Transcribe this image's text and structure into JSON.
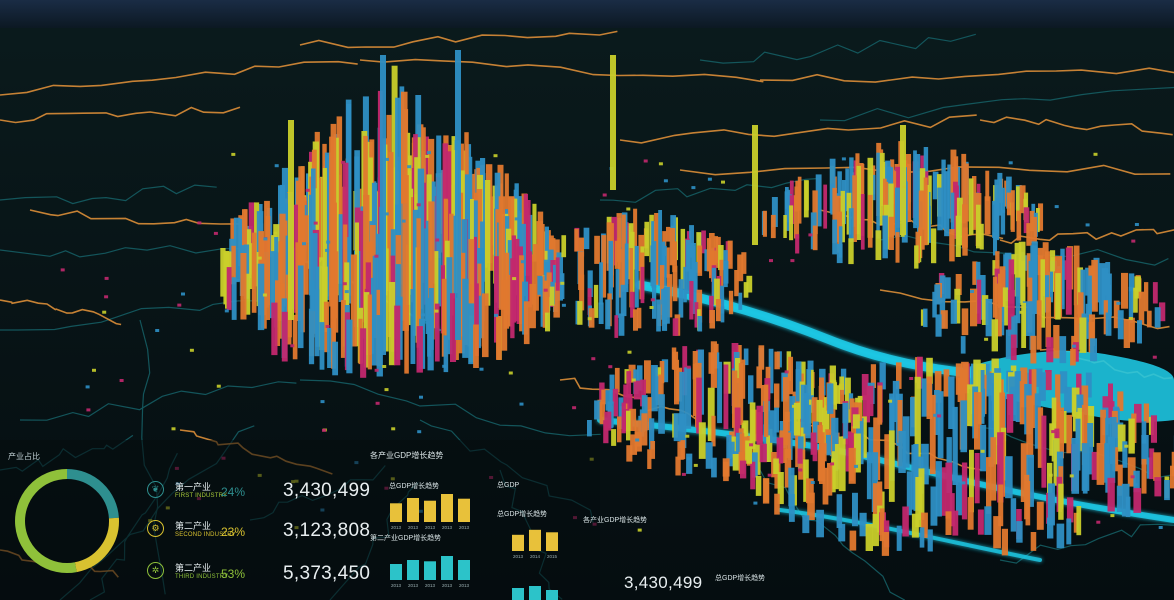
{
  "colors": {
    "background": "#061014",
    "road": "#e8953a",
    "river": "#1fc9e6",
    "bar_blue": "#2e8fc4",
    "bar_orange": "#e0782e",
    "bar_yellow": "#c9cf2a",
    "bar_magenta": "#c2286e",
    "accent_green": "#a7c83a",
    "accent_yellow": "#e8c13a",
    "accent_teal": "#2cc3c9"
  },
  "panel": {
    "title": "产业占比",
    "rows": [
      {
        "icon": "wheat-icon",
        "title": "第一产业",
        "subtitle": "FIRST INDUSTRY",
        "percent": "24%",
        "value": "3,430,499",
        "color": "#2e8f8f"
      },
      {
        "icon": "gear-icon",
        "title": "第二产业",
        "subtitle": "SECOND INDUSTRY",
        "percent": "23%",
        "value": "3,123,808",
        "color": "#d9c230"
      },
      {
        "icon": "cog-icon",
        "title": "第二产业",
        "subtitle": "THIRD INDUSTRY",
        "percent": "53%",
        "value": "5,373,450",
        "color": "#8fc13a"
      }
    ]
  },
  "mini_charts": {
    "main_title": "各产业GDP增长趋势",
    "chart1_title": "总GDP增长趋势",
    "chart2_title": "第二产业GDP增长趋势",
    "chart3_title": "总GDP增长趋势",
    "chart4_title": "总GDP",
    "overlay_title": "各产业GDP增长趋势",
    "overlay_value": "3,430,499",
    "overlay_small": "总GDP增长趋势"
  },
  "chart_data": [
    {
      "type": "pie",
      "title": "产业占比",
      "categories": [
        "第一产业",
        "第二产业",
        "第二产业"
      ],
      "values": [
        24,
        23,
        53
      ],
      "colors": [
        "#2e8f8f",
        "#d9c230",
        "#8fc13a"
      ]
    },
    {
      "type": "bar",
      "title": "总GDP增长趋势",
      "categories": [
        "2013",
        "2013",
        "2013",
        "2013",
        "2013"
      ],
      "values": [
        28,
        36,
        32,
        42,
        35
      ],
      "ylim": [
        0,
        45
      ],
      "color": "#e8c13a"
    },
    {
      "type": "bar",
      "title": "第二产业GDP增长趋势",
      "categories": [
        "2013",
        "2013",
        "2013",
        "2013",
        "2013"
      ],
      "values": [
        24,
        30,
        28,
        36,
        30
      ],
      "ylim": [
        0,
        45
      ],
      "color": "#2cc3c9"
    },
    {
      "type": "bar",
      "title": "总GDP增长趋势",
      "categories": [
        "2013",
        "2014",
        "2015"
      ],
      "values": [
        26,
        34,
        30
      ],
      "ylim": [
        0,
        45
      ],
      "color": "#e8c13a"
    }
  ]
}
